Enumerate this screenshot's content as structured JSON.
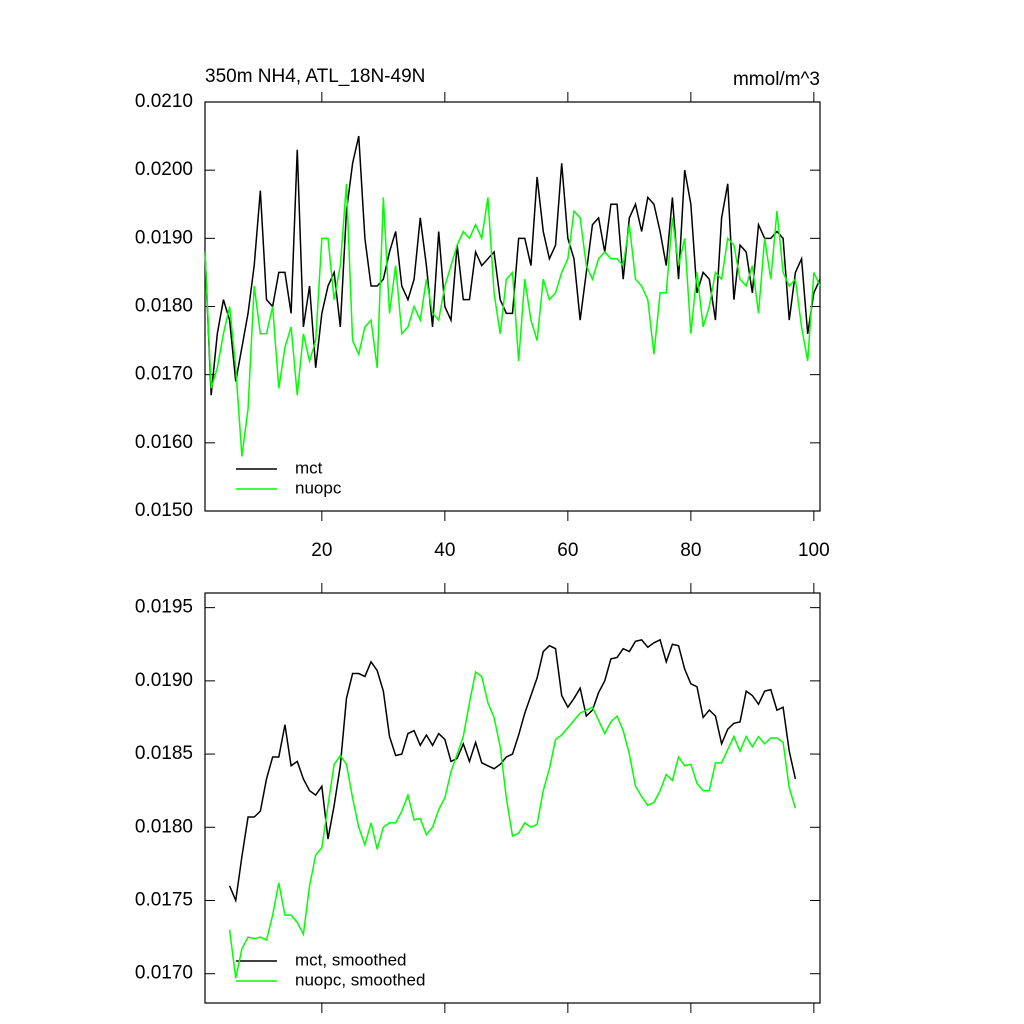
{
  "chart_data": [
    {
      "type": "line",
      "title": "350m NH4, ATL_18N-49N",
      "subtitle": "mmol/m^3",
      "xlim": [
        1,
        101
      ],
      "xticks": [
        20,
        40,
        60,
        80,
        100
      ],
      "ylim": [
        0.015,
        0.021
      ],
      "yticks": [
        {
          "value": 0.015,
          "label": "0.0150"
        },
        {
          "value": 0.016,
          "label": "0.0160"
        },
        {
          "value": 0.017,
          "label": "0.0170"
        },
        {
          "value": 0.018,
          "label": "0.0180"
        },
        {
          "value": 0.019,
          "label": "0.0190"
        },
        {
          "value": 0.02,
          "label": "0.0200"
        },
        {
          "value": 0.021,
          "label": "0.0210"
        }
      ],
      "legend": "lower-left",
      "x": [
        1,
        2,
        3,
        4,
        5,
        6,
        7,
        8,
        9,
        10,
        11,
        12,
        13,
        14,
        15,
        16,
        17,
        18,
        19,
        20,
        21,
        22,
        23,
        24,
        25,
        26,
        27,
        28,
        29,
        30,
        31,
        32,
        33,
        34,
        35,
        36,
        37,
        38,
        39,
        40,
        41,
        42,
        43,
        44,
        45,
        46,
        47,
        48,
        49,
        50,
        51,
        52,
        53,
        54,
        55,
        56,
        57,
        58,
        59,
        60,
        61,
        62,
        63,
        64,
        65,
        66,
        67,
        68,
        69,
        70,
        71,
        72,
        73,
        74,
        75,
        76,
        77,
        78,
        79,
        80,
        81,
        82,
        83,
        84,
        85,
        86,
        87,
        88,
        89,
        90,
        91,
        92,
        93,
        94,
        95,
        96,
        97,
        98,
        99,
        100,
        101
      ],
      "series": [
        {
          "name": "mct",
          "color": "#000000",
          "values": [
            0.0188,
            0.0167,
            0.0176,
            0.0181,
            0.0178,
            0.0169,
            0.0174,
            0.0179,
            0.0186,
            0.0197,
            0.0181,
            0.018,
            0.0185,
            0.0185,
            0.0179,
            0.0203,
            0.0177,
            0.0183,
            0.0171,
            0.0179,
            0.0183,
            0.0185,
            0.0177,
            0.0194,
            0.0201,
            0.0205,
            0.019,
            0.0183,
            0.0183,
            0.0184,
            0.0188,
            0.0191,
            0.0183,
            0.0181,
            0.0184,
            0.0193,
            0.0186,
            0.0177,
            0.0191,
            0.018,
            0.0178,
            0.0189,
            0.0181,
            0.0181,
            0.0188,
            0.0186,
            0.0187,
            0.0188,
            0.0181,
            0.0179,
            0.0179,
            0.019,
            0.019,
            0.0186,
            0.0199,
            0.0191,
            0.0187,
            0.0189,
            0.0201,
            0.019,
            0.0187,
            0.0178,
            0.0185,
            0.0192,
            0.0193,
            0.0188,
            0.0195,
            0.0195,
            0.0184,
            0.0193,
            0.0195,
            0.0191,
            0.0196,
            0.0195,
            0.0191,
            0.0186,
            0.0196,
            0.0184,
            0.02,
            0.0195,
            0.0182,
            0.0185,
            0.0184,
            0.0178,
            0.0193,
            0.0198,
            0.0181,
            0.0189,
            0.0188,
            0.0182,
            0.0192,
            0.019,
            0.019,
            0.0191,
            0.019,
            0.0178,
            0.0185,
            0.0187,
            0.0176,
            0.0182,
            0.0184
          ]
        },
        {
          "name": "nuopc",
          "color": "#00ff00",
          "values": [
            0.0188,
            0.0168,
            0.0171,
            0.0176,
            0.018,
            0.0171,
            0.0158,
            0.0165,
            0.0183,
            0.0176,
            0.0176,
            0.018,
            0.0168,
            0.0174,
            0.0177,
            0.0167,
            0.0176,
            0.0172,
            0.0175,
            0.019,
            0.019,
            0.0181,
            0.0186,
            0.0198,
            0.0175,
            0.0173,
            0.0177,
            0.0178,
            0.0171,
            0.0196,
            0.0179,
            0.0186,
            0.0176,
            0.0177,
            0.018,
            0.0178,
            0.0184,
            0.0179,
            0.0178,
            0.0183,
            0.0186,
            0.0189,
            0.0191,
            0.019,
            0.0192,
            0.019,
            0.0196,
            0.0182,
            0.0176,
            0.0184,
            0.0185,
            0.0172,
            0.0184,
            0.0178,
            0.0175,
            0.0184,
            0.0181,
            0.0182,
            0.0185,
            0.0187,
            0.0194,
            0.0193,
            0.0186,
            0.0184,
            0.0187,
            0.0188,
            0.0187,
            0.0187,
            0.0186,
            0.0192,
            0.0184,
            0.0183,
            0.0181,
            0.0173,
            0.0182,
            0.0182,
            0.0193,
            0.0186,
            0.019,
            0.0176,
            0.0185,
            0.0177,
            0.018,
            0.0185,
            0.0184,
            0.019,
            0.0189,
            0.0184,
            0.0183,
            0.0186,
            0.0179,
            0.019,
            0.0184,
            0.0194,
            0.0185,
            0.0183,
            0.0184,
            0.0177,
            0.0172,
            0.0185,
            0.0183
          ]
        }
      ]
    },
    {
      "type": "line",
      "xlim": [
        1,
        101
      ],
      "xticks": [
        20,
        40,
        60,
        80,
        100
      ],
      "ylim": [
        0.0168,
        0.0196
      ],
      "yticks": [
        {
          "value": 0.017,
          "label": "0.0170"
        },
        {
          "value": 0.0175,
          "label": "0.0175"
        },
        {
          "value": 0.018,
          "label": "0.0180"
        },
        {
          "value": 0.0185,
          "label": "0.0185"
        },
        {
          "value": 0.019,
          "label": "0.0190"
        },
        {
          "value": 0.0195,
          "label": "0.0195"
        }
      ],
      "legend": "lower-left",
      "x": [
        5,
        6,
        7,
        8,
        9,
        10,
        11,
        12,
        13,
        14,
        15,
        16,
        17,
        18,
        19,
        20,
        21,
        22,
        23,
        24,
        25,
        26,
        27,
        28,
        29,
        30,
        31,
        32,
        33,
        34,
        35,
        36,
        37,
        38,
        39,
        40,
        41,
        42,
        43,
        44,
        45,
        46,
        47,
        48,
        49,
        50,
        51,
        52,
        53,
        54,
        55,
        56,
        57,
        58,
        59,
        60,
        61,
        62,
        63,
        64,
        65,
        66,
        67,
        68,
        69,
        70,
        71,
        72,
        73,
        74,
        75,
        76,
        77,
        78,
        79,
        80,
        81,
        82,
        83,
        84,
        85,
        86,
        87,
        88,
        89,
        90,
        91,
        92,
        93,
        94,
        95,
        96,
        97
      ],
      "series": [
        {
          "name": "mct, smoothed",
          "color": "#000000",
          "values": [
            0.0176,
            0.0175,
            0.0178,
            0.01807,
            0.01807,
            0.01811,
            0.01833,
            0.01848,
            0.01848,
            0.0187,
            0.01842,
            0.01845,
            0.01833,
            0.01825,
            0.01822,
            0.01828,
            0.01792,
            0.01815,
            0.01842,
            0.01888,
            0.01905,
            0.01905,
            0.01903,
            0.01913,
            0.01907,
            0.01893,
            0.01862,
            0.01849,
            0.0185,
            0.01864,
            0.01866,
            0.01856,
            0.01863,
            0.01856,
            0.01864,
            0.0186,
            0.01845,
            0.01847,
            0.01857,
            0.01845,
            0.01858,
            0.01844,
            0.01842,
            0.0184,
            0.01843,
            0.01848,
            0.0185,
            0.01863,
            0.01878,
            0.0189,
            0.01902,
            0.0192,
            0.01924,
            0.01922,
            0.0189,
            0.01882,
            0.01888,
            0.01895,
            0.01876,
            0.0188,
            0.01892,
            0.019,
            0.01915,
            0.01916,
            0.01922,
            0.0192,
            0.01927,
            0.01928,
            0.01923,
            0.01926,
            0.01928,
            0.01913,
            0.01925,
            0.01924,
            0.01908,
            0.01898,
            0.01896,
            0.01875,
            0.0188,
            0.01876,
            0.01857,
            0.01867,
            0.01871,
            0.01872,
            0.01893,
            0.0189,
            0.01884,
            0.01893,
            0.01894,
            0.0188,
            0.01882,
            0.01852,
            0.01833
          ]
        },
        {
          "name": "nuopc, smoothed",
          "color": "#00ff00",
          "values": [
            0.0173,
            0.01697,
            0.01717,
            0.01725,
            0.01724,
            0.01725,
            0.01723,
            0.0174,
            0.01762,
            0.0174,
            0.0174,
            0.01735,
            0.01727,
            0.0176,
            0.01781,
            0.01786,
            0.01815,
            0.01843,
            0.01849,
            0.01843,
            0.0182,
            0.018,
            0.01788,
            0.01803,
            0.01785,
            0.018,
            0.01803,
            0.01803,
            0.01811,
            0.01822,
            0.01805,
            0.01806,
            0.01795,
            0.018,
            0.01812,
            0.0182,
            0.01838,
            0.0185,
            0.01862,
            0.01885,
            0.01906,
            0.01903,
            0.01885,
            0.01875,
            0.01855,
            0.0182,
            0.01794,
            0.01796,
            0.01803,
            0.018,
            0.01802,
            0.01825,
            0.0184,
            0.0186,
            0.01863,
            0.01868,
            0.01873,
            0.01878,
            0.0188,
            0.01882,
            0.01873,
            0.01864,
            0.01872,
            0.01876,
            0.01866,
            0.0185,
            0.01828,
            0.01821,
            0.01815,
            0.01817,
            0.01825,
            0.01836,
            0.01832,
            0.01848,
            0.01842,
            0.01843,
            0.0183,
            0.01825,
            0.01825,
            0.01844,
            0.01844,
            0.01853,
            0.01862,
            0.01852,
            0.01862,
            0.01855,
            0.01862,
            0.01857,
            0.01861,
            0.01861,
            0.01858,
            0.01827,
            0.01813
          ]
        }
      ]
    }
  ]
}
